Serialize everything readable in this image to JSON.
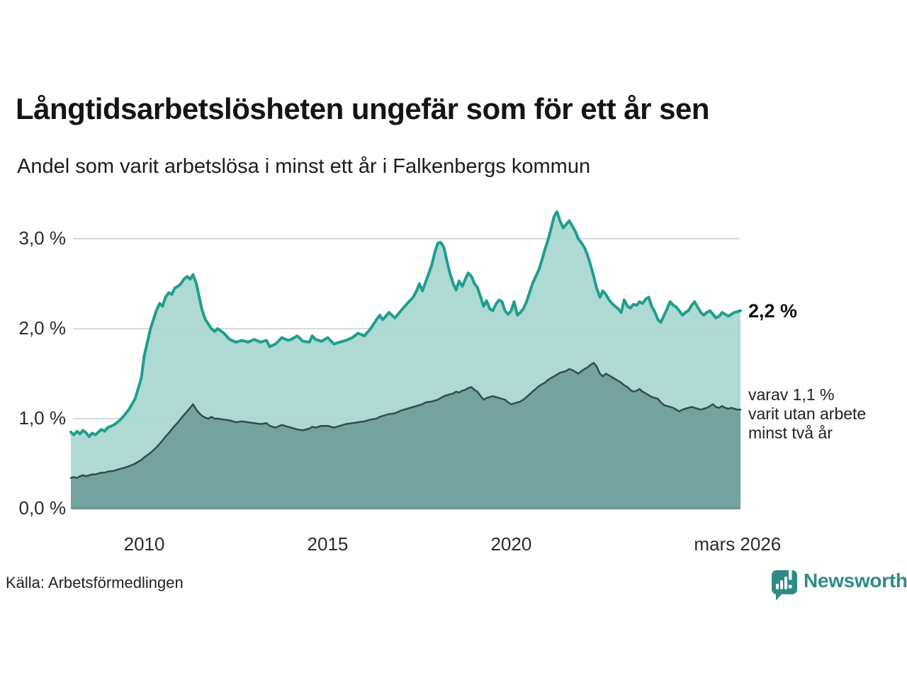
{
  "header": {
    "title": "Långtidsarbetslösheten ungefär som för ett år sen",
    "subtitle": "Andel som varit arbetslösa i minst ett år i Falkenbergs kommun"
  },
  "chart_data": {
    "type": "area",
    "title": "Långtidsarbetslösheten ungefär som för ett år sen",
    "xlabel": "",
    "ylabel": "",
    "x_unit": "decimal_year",
    "x_range": [
      2008.0,
      2026.25
    ],
    "ylim": [
      0,
      3.45
    ],
    "grid": true,
    "legend_position": "none",
    "y_ticks": [
      {
        "value": 3.0,
        "label": "3,0 %",
        "grid": true
      },
      {
        "value": 2.0,
        "label": "2,0 %",
        "grid": true
      },
      {
        "value": 1.0,
        "label": "1,0 %",
        "grid": true
      },
      {
        "value": 0.0,
        "label": "0,0 %",
        "grid": false
      }
    ],
    "x_ticks": [
      {
        "value": 2010,
        "label": "2010"
      },
      {
        "value": 2015,
        "label": "2015"
      },
      {
        "value": 2020,
        "label": "2020"
      },
      {
        "value": 2026.17,
        "label": "mars 2026"
      }
    ],
    "x": [
      2008.0,
      2008.08,
      2008.17,
      2008.25,
      2008.33,
      2008.42,
      2008.5,
      2008.58,
      2008.67,
      2008.75,
      2008.83,
      2008.92,
      2009.0,
      2009.17,
      2009.33,
      2009.42,
      2009.58,
      2009.75,
      2009.92,
      2010.0,
      2010.17,
      2010.33,
      2010.42,
      2010.5,
      2010.58,
      2010.67,
      2010.75,
      2010.83,
      2010.92,
      2011.0,
      2011.08,
      2011.17,
      2011.25,
      2011.33,
      2011.42,
      2011.5,
      2011.58,
      2011.67,
      2011.75,
      2011.83,
      2011.92,
      2012.0,
      2012.17,
      2012.33,
      2012.5,
      2012.67,
      2012.83,
      2013.0,
      2013.17,
      2013.33,
      2013.42,
      2013.58,
      2013.75,
      2013.92,
      2014.0,
      2014.17,
      2014.33,
      2014.5,
      2014.58,
      2014.67,
      2014.83,
      2015.0,
      2015.17,
      2015.33,
      2015.5,
      2015.67,
      2015.83,
      2016.0,
      2016.17,
      2016.33,
      2016.42,
      2016.5,
      2016.67,
      2016.83,
      2017.0,
      2017.17,
      2017.33,
      2017.42,
      2017.5,
      2017.58,
      2017.67,
      2017.83,
      2017.92,
      2018.0,
      2018.08,
      2018.17,
      2018.25,
      2018.33,
      2018.42,
      2018.5,
      2018.58,
      2018.67,
      2018.75,
      2018.83,
      2018.92,
      2019.0,
      2019.08,
      2019.17,
      2019.25,
      2019.33,
      2019.42,
      2019.5,
      2019.58,
      2019.67,
      2019.75,
      2019.83,
      2019.92,
      2020.0,
      2020.08,
      2020.17,
      2020.25,
      2020.33,
      2020.42,
      2020.5,
      2020.58,
      2020.67,
      2020.75,
      2020.83,
      2020.92,
      2021.0,
      2021.08,
      2021.17,
      2021.25,
      2021.33,
      2021.42,
      2021.5,
      2021.58,
      2021.67,
      2021.75,
      2021.83,
      2021.92,
      2022.0,
      2022.08,
      2022.17,
      2022.25,
      2022.33,
      2022.42,
      2022.5,
      2022.58,
      2022.67,
      2022.75,
      2022.83,
      2022.92,
      2023.0,
      2023.08,
      2023.17,
      2023.25,
      2023.33,
      2023.42,
      2023.5,
      2023.58,
      2023.67,
      2023.75,
      2023.83,
      2023.92,
      2024.0,
      2024.08,
      2024.17,
      2024.25,
      2024.33,
      2024.42,
      2024.5,
      2024.58,
      2024.67,
      2024.75,
      2024.83,
      2024.92,
      2025.0,
      2025.08,
      2025.17,
      2025.25,
      2025.33,
      2025.42,
      2025.5,
      2025.58,
      2025.67,
      2025.75,
      2025.83,
      2025.92,
      2026.0,
      2026.08,
      2026.17,
      2026.25
    ],
    "series": [
      {
        "name": "Andel arbetslösa minst ett år",
        "color": "#1f9e8e",
        "fill": "#a8d6cf",
        "stroke_width": 4,
        "latest_label": "2,2 %",
        "values": [
          0.85,
          0.82,
          0.86,
          0.83,
          0.87,
          0.84,
          0.8,
          0.84,
          0.82,
          0.85,
          0.88,
          0.86,
          0.9,
          0.93,
          0.98,
          1.02,
          1.1,
          1.22,
          1.45,
          1.7,
          2.0,
          2.2,
          2.28,
          2.25,
          2.35,
          2.4,
          2.38,
          2.45,
          2.47,
          2.5,
          2.55,
          2.58,
          2.55,
          2.6,
          2.5,
          2.35,
          2.2,
          2.1,
          2.05,
          2.0,
          1.97,
          2.0,
          1.95,
          1.88,
          1.85,
          1.87,
          1.85,
          1.88,
          1.85,
          1.87,
          1.8,
          1.83,
          1.9,
          1.87,
          1.88,
          1.92,
          1.86,
          1.85,
          1.92,
          1.88,
          1.86,
          1.9,
          1.83,
          1.85,
          1.87,
          1.9,
          1.95,
          1.92,
          2.0,
          2.1,
          2.15,
          2.1,
          2.18,
          2.12,
          2.2,
          2.28,
          2.35,
          2.42,
          2.5,
          2.42,
          2.52,
          2.7,
          2.85,
          2.95,
          2.96,
          2.9,
          2.75,
          2.62,
          2.5,
          2.43,
          2.53,
          2.47,
          2.55,
          2.62,
          2.58,
          2.5,
          2.46,
          2.35,
          2.25,
          2.31,
          2.22,
          2.2,
          2.27,
          2.32,
          2.3,
          2.2,
          2.16,
          2.2,
          2.3,
          2.15,
          2.18,
          2.22,
          2.3,
          2.4,
          2.5,
          2.58,
          2.65,
          2.75,
          2.88,
          2.98,
          3.1,
          3.25,
          3.3,
          3.2,
          3.12,
          3.16,
          3.2,
          3.14,
          3.08,
          3.0,
          2.95,
          2.9,
          2.82,
          2.7,
          2.58,
          2.45,
          2.35,
          2.42,
          2.38,
          2.32,
          2.28,
          2.25,
          2.22,
          2.18,
          2.32,
          2.25,
          2.23,
          2.27,
          2.26,
          2.3,
          2.28,
          2.33,
          2.35,
          2.25,
          2.18,
          2.1,
          2.07,
          2.15,
          2.22,
          2.3,
          2.26,
          2.24,
          2.2,
          2.15,
          2.18,
          2.2,
          2.26,
          2.3,
          2.24,
          2.18,
          2.15,
          2.18,
          2.2,
          2.16,
          2.12,
          2.14,
          2.18,
          2.16,
          2.14,
          2.16,
          2.18,
          2.19,
          2.2
        ]
      },
      {
        "name": "varav utan arbete minst två år",
        "color": "#2e4f4c",
        "fill": "#6f9d99",
        "stroke_width": 2.5,
        "latest_label": "1,1 %",
        "values": [
          0.34,
          0.35,
          0.34,
          0.36,
          0.37,
          0.36,
          0.37,
          0.38,
          0.38,
          0.39,
          0.4,
          0.4,
          0.41,
          0.42,
          0.44,
          0.45,
          0.47,
          0.5,
          0.54,
          0.57,
          0.62,
          0.68,
          0.72,
          0.76,
          0.8,
          0.84,
          0.88,
          0.92,
          0.96,
          1.0,
          1.04,
          1.08,
          1.12,
          1.16,
          1.1,
          1.06,
          1.03,
          1.01,
          1.0,
          1.02,
          1.0,
          1.0,
          0.99,
          0.98,
          0.96,
          0.97,
          0.96,
          0.95,
          0.94,
          0.95,
          0.92,
          0.9,
          0.93,
          0.91,
          0.9,
          0.88,
          0.87,
          0.89,
          0.91,
          0.9,
          0.92,
          0.92,
          0.9,
          0.92,
          0.94,
          0.95,
          0.96,
          0.97,
          0.99,
          1.0,
          1.02,
          1.03,
          1.05,
          1.06,
          1.09,
          1.11,
          1.13,
          1.14,
          1.15,
          1.16,
          1.18,
          1.19,
          1.2,
          1.21,
          1.23,
          1.25,
          1.26,
          1.27,
          1.28,
          1.3,
          1.29,
          1.31,
          1.32,
          1.34,
          1.35,
          1.32,
          1.3,
          1.25,
          1.21,
          1.23,
          1.24,
          1.25,
          1.24,
          1.23,
          1.22,
          1.21,
          1.18,
          1.16,
          1.17,
          1.18,
          1.19,
          1.21,
          1.24,
          1.27,
          1.3,
          1.33,
          1.36,
          1.38,
          1.4,
          1.43,
          1.45,
          1.47,
          1.49,
          1.51,
          1.52,
          1.53,
          1.55,
          1.54,
          1.52,
          1.5,
          1.53,
          1.55,
          1.57,
          1.6,
          1.62,
          1.58,
          1.5,
          1.47,
          1.5,
          1.48,
          1.46,
          1.44,
          1.42,
          1.4,
          1.37,
          1.35,
          1.32,
          1.3,
          1.31,
          1.33,
          1.3,
          1.28,
          1.26,
          1.24,
          1.23,
          1.22,
          1.18,
          1.15,
          1.14,
          1.13,
          1.12,
          1.1,
          1.08,
          1.1,
          1.11,
          1.12,
          1.13,
          1.12,
          1.11,
          1.1,
          1.11,
          1.12,
          1.14,
          1.16,
          1.13,
          1.12,
          1.14,
          1.12,
          1.11,
          1.12,
          1.11,
          1.1,
          1.1
        ]
      }
    ]
  },
  "annotations": {
    "latest_value": "2,2 %",
    "sub_lines": [
      "varav 1,1 %",
      "varit utan arbete",
      "minst två år"
    ]
  },
  "footer": {
    "source": "Källa: Arbetsförmedlingen",
    "brand": "Newsworthy"
  },
  "colors": {
    "accent_teal": "#1f9e8e",
    "fill_light": "#a8d6cf",
    "fill_dark": "#6f9d99",
    "line_dark": "#2e4f4c",
    "gridline": "#d9d9d9",
    "baseline": "#4d7571",
    "brand_teal": "#2f8c84",
    "text": "#1a1a1a"
  }
}
